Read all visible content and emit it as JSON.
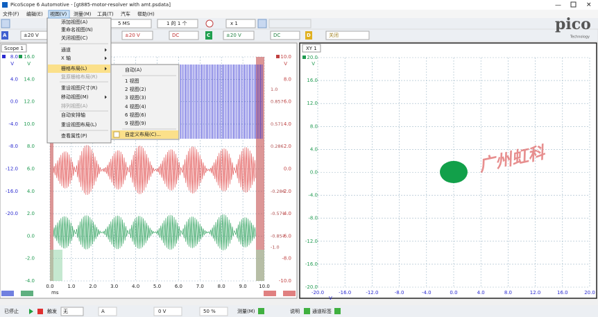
{
  "title_bar": {
    "title": "PicoScope 6 Automotive - [gt885-motor-resolver with amt.psdata]"
  },
  "menu_bar": {
    "items": [
      "文件(F)",
      "编辑(E)",
      "视图(V)",
      "测量(M)",
      "工具(T)",
      "汽车",
      "帮助(H)"
    ]
  },
  "toolbar": {
    "timebase": "5 MS",
    "buffer": "1 的 1 个",
    "zoom": "x 1",
    "logo": "pico",
    "logo_tagline": "Technology"
  },
  "channel_bar": {
    "a_letter": "A",
    "a_range": "±20 V",
    "b_range": "±20 V",
    "b_coupling": "DC",
    "c_letter": "C",
    "c_range": "±20 V",
    "c_coupling": "DC",
    "d_letter": "D",
    "d_range": "关闭"
  },
  "scope_view": {
    "tab": "Scope 1",
    "axis_a": {
      "unit": "V",
      "labels": [
        "8.0",
        "4.0",
        "0.0",
        "-4.0",
        "-8.0",
        "-12.0",
        "-16.0",
        "-20.0"
      ]
    },
    "axis_b": {
      "unit": "V",
      "labels": [
        "16.0",
        "14.0",
        "12.0",
        "10.0",
        "8.0",
        "6.0",
        "4.0",
        "2.0",
        "0.0",
        "-2.0",
        "-4.0"
      ]
    },
    "axis_d": {
      "unit": "V",
      "labels": [
        "10.0",
        "8.0",
        "6.0",
        "4.0",
        "2.0",
        "0.0",
        "-2.0",
        "-4.0",
        "-6.0",
        "-8.0",
        "-10.0"
      ]
    },
    "axis_ref": {
      "labels": [
        "1.0",
        "0.857",
        "0.571",
        "0.286",
        "-0.286",
        "-0.571",
        "-0.857",
        "-1.0"
      ]
    },
    "x_labels": [
      "0.0",
      "1.0",
      "2.0",
      "3.0",
      "4.0",
      "5.0",
      "6.0",
      "7.0",
      "8.0",
      "9.0",
      "10.0"
    ],
    "x_unit": "ms"
  },
  "xy_view": {
    "tab": "XY 1",
    "y_unit": "V",
    "y_labels": [
      "20.0",
      "16.0",
      "12.0",
      "8.0",
      "4.0",
      "0.0",
      "-4.0",
      "-8.0",
      "-12.0",
      "-16.0",
      "-20.0"
    ],
    "x_labels": [
      "-20.0",
      "-16.0",
      "-12.0",
      "-8.0",
      "-4.0",
      "0.0",
      "4.0",
      "8.0",
      "12.0",
      "16.0",
      "20.0"
    ],
    "x_unit": "V"
  },
  "context_menu": {
    "items": [
      "添加视图(A)",
      "重命名视图(N)",
      "关闭视图(C)",
      "通道",
      "X 轴",
      "栅格布局(L)",
      "复原栅格布局(R)",
      "重设视图尺寸(R)",
      "移动视图(M)",
      "排列视图(A)",
      "自动安排轴",
      "重设视图布局(L)",
      "查看属性(P)"
    ]
  },
  "submenu": {
    "items": [
      "自动(A)",
      "1 视图",
      "2 视图(2)",
      "3 视图(3)",
      "4 视图(4)",
      "6 视图(6)",
      "9 视图(9)",
      "自定义布局(C)..."
    ]
  },
  "status_bar": {
    "state": "已停止",
    "trigger_label": "触发",
    "trigger_mode": "无",
    "trigger_channel": "A",
    "trigger_level": "0 V",
    "trigger_position": "50 %",
    "measure": "测量(M)",
    "notes": "说明",
    "channel_labels": "通道标签"
  },
  "watermark": "广州虹科"
}
